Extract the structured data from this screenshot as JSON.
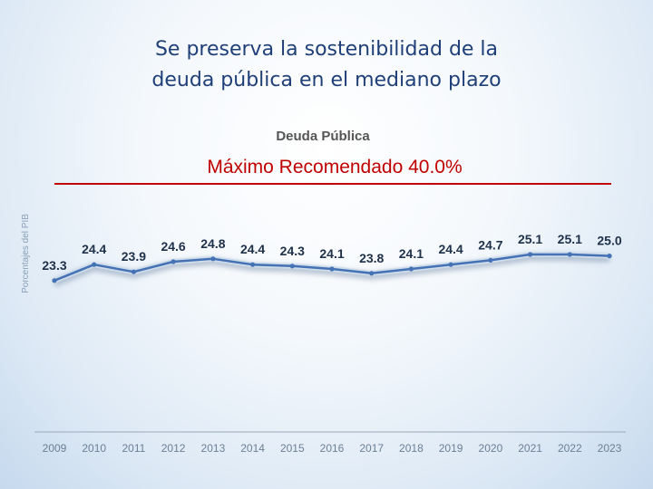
{
  "slide": {
    "title_line1": "Se preserva la sostenibilidad de la",
    "title_line2": "deuda pública en el mediano plazo"
  },
  "chart_data": {
    "type": "line",
    "title": "Deuda Pública",
    "ylabel": "Porcentajes del PIB",
    "xlabel": "",
    "x": [
      "2009",
      "2010",
      "2011",
      "2012",
      "2013",
      "2014",
      "2015",
      "2016",
      "2017",
      "2018",
      "2019",
      "2020",
      "2021",
      "2022",
      "2023"
    ],
    "series": [
      {
        "values": [
          23.3,
          24.4,
          23.9,
          24.6,
          24.8,
          24.4,
          24.3,
          24.1,
          23.8,
          24.1,
          24.4,
          24.7,
          25.1,
          25.1,
          25.0
        ]
      }
    ],
    "data_labels": [
      "23.3",
      "24.4",
      "23.9",
      "24.6",
      "24.8",
      "24.4",
      "24.3",
      "24.1",
      "23.8",
      "24.1",
      "24.4",
      "24.7",
      "25.1",
      "25.1",
      "25.0"
    ],
    "reference_line": {
      "label": "Máximo Recomendado 40.0%",
      "value": 40.0,
      "color": "#c00000"
    },
    "series_color": "#4472b4",
    "grid": false,
    "legend": "none"
  }
}
